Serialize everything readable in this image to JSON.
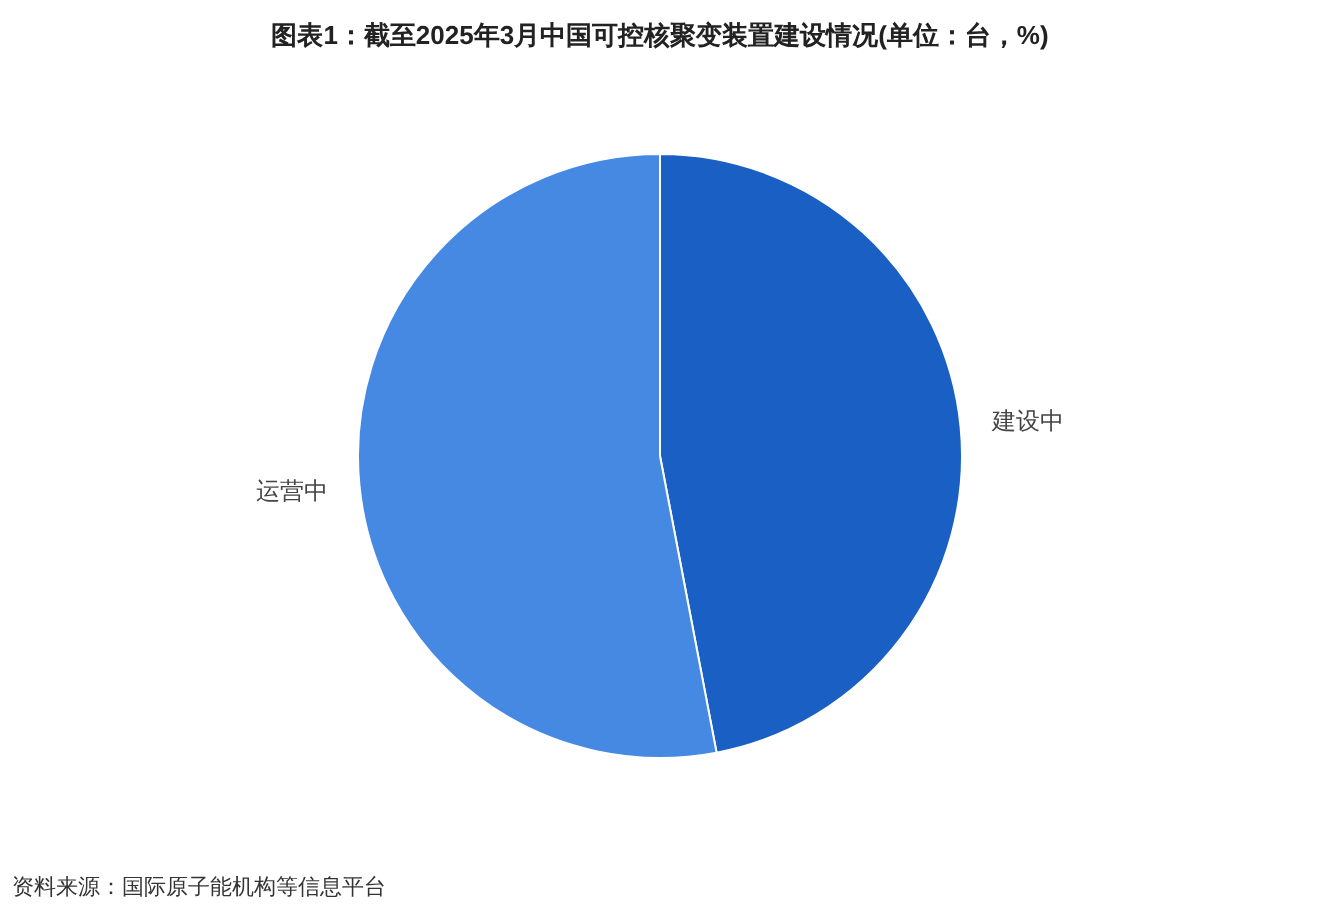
{
  "chart_data": {
    "type": "pie",
    "title": "图表1：截至2025年3月中国可控核聚变装置建设情况(单位：台，%)",
    "categories": [
      "建设中",
      "运营中"
    ],
    "values": [
      47,
      53
    ],
    "colors": [
      "#1a5fc4",
      "#4589e3"
    ],
    "annotations": [
      "资料来源：国际原子能机构等信息平台"
    ]
  }
}
